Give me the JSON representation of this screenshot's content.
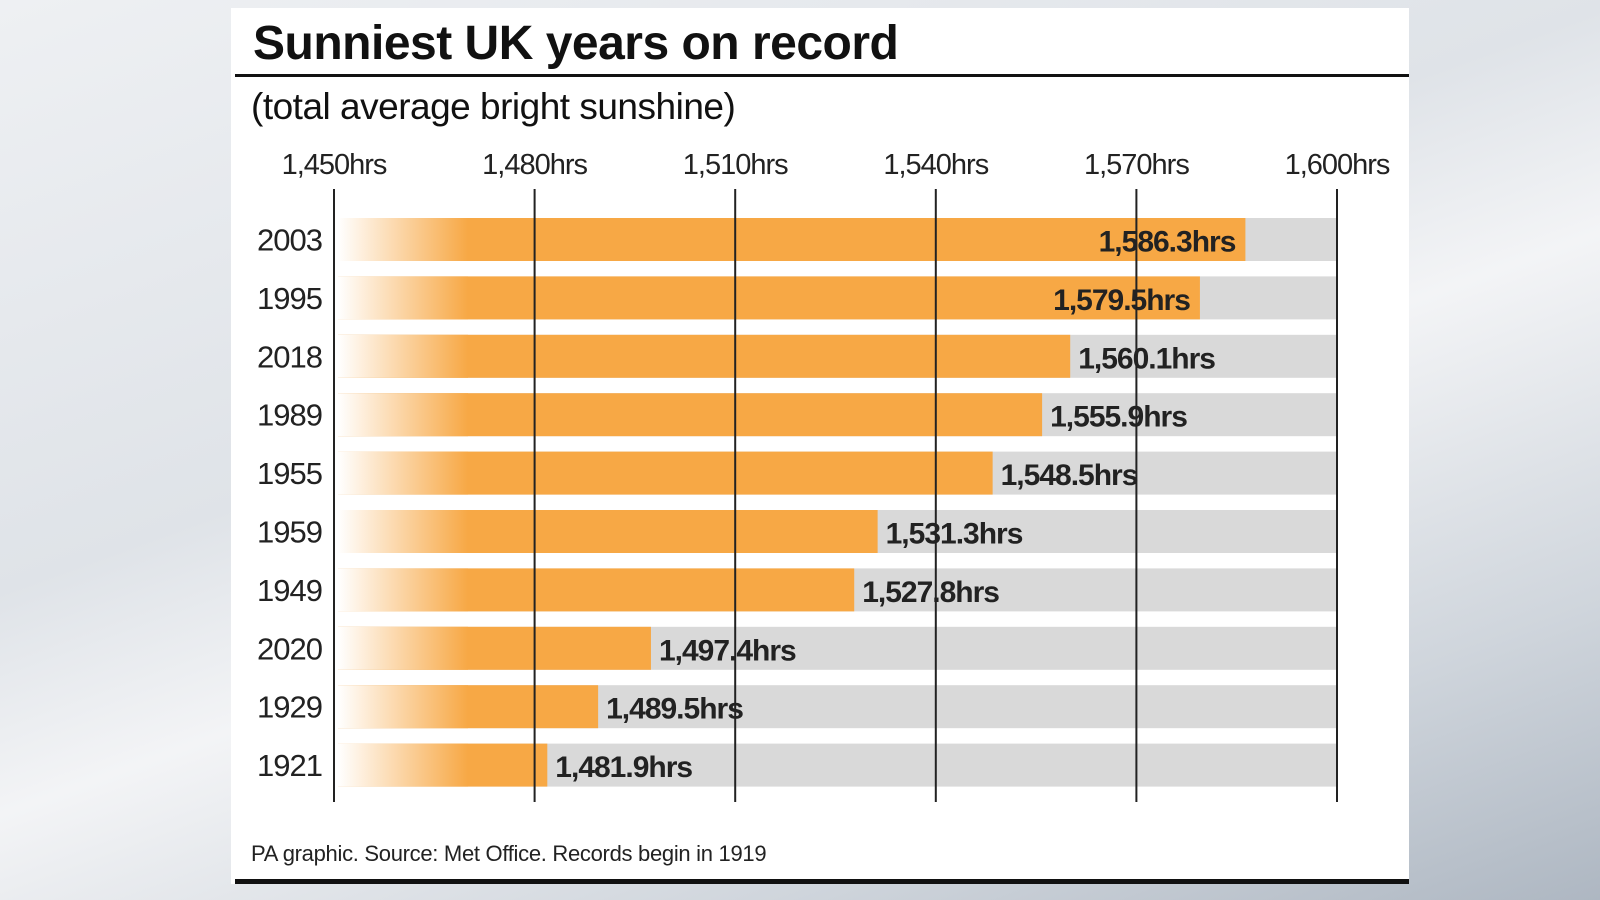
{
  "chart_data": {
    "type": "bar",
    "orientation": "horizontal",
    "title": "Sunniest UK years on record",
    "subtitle": "(total average bright sunshine)",
    "footer": "PA graphic. Source: Met Office. Records begin in 1919",
    "categories": [
      "2003",
      "1995",
      "2018",
      "1989",
      "1955",
      "1959",
      "1949",
      "2020",
      "1929",
      "1921"
    ],
    "values": [
      1586.3,
      1579.5,
      1560.1,
      1555.9,
      1548.5,
      1531.3,
      1527.8,
      1497.4,
      1489.5,
      1481.9
    ],
    "value_labels": [
      "1,586.3hrs",
      "1,579.5hrs",
      "1,560.1hrs",
      "1,555.9hrs",
      "1,548.5hrs",
      "1,531.3hrs",
      "1,527.8hrs",
      "1,497.4hrs",
      "1,489.5hrs",
      "1,481.9hrs"
    ],
    "xlim": [
      1450,
      1600
    ],
    "xticks": [
      1450,
      1480,
      1510,
      1540,
      1570,
      1600
    ],
    "xtick_labels": [
      "1,450hrs",
      "1,480hrs",
      "1,510hrs",
      "1,540hrs",
      "1,570hrs",
      "1,600hrs"
    ],
    "xaxis_position": "top",
    "grid": true,
    "colors": {
      "bar": "#f7a845",
      "track": "#d9d9d9",
      "text": "#222222"
    }
  }
}
